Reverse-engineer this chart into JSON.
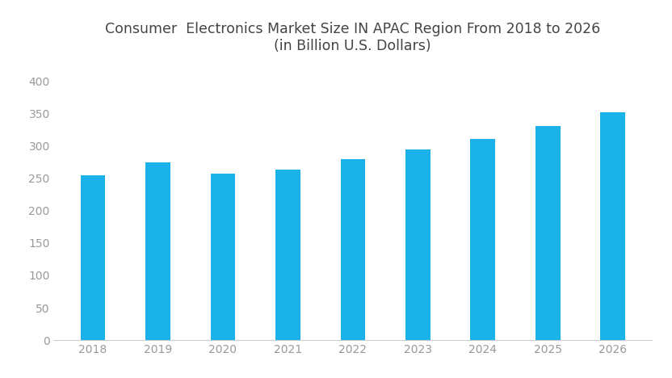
{
  "title_line1": "Consumer  Electronics Market Size IN APAC Region From 2018 to 2026",
  "title_line2": "(in Billion U.S. Dollars)",
  "categories": [
    2018,
    2019,
    2020,
    2021,
    2022,
    2023,
    2024,
    2025,
    2026
  ],
  "values": [
    255,
    274,
    257,
    263,
    280,
    295,
    310,
    330,
    352
  ],
  "bar_color": "#1ab2e8",
  "ylim": [
    0,
    420
  ],
  "yticks": [
    0,
    50,
    100,
    150,
    200,
    250,
    300,
    350,
    400
  ],
  "background_color": "#ffffff",
  "title_fontsize": 12.5,
  "tick_fontsize": 10,
  "tick_color": "#999999",
  "bar_width": 0.38
}
